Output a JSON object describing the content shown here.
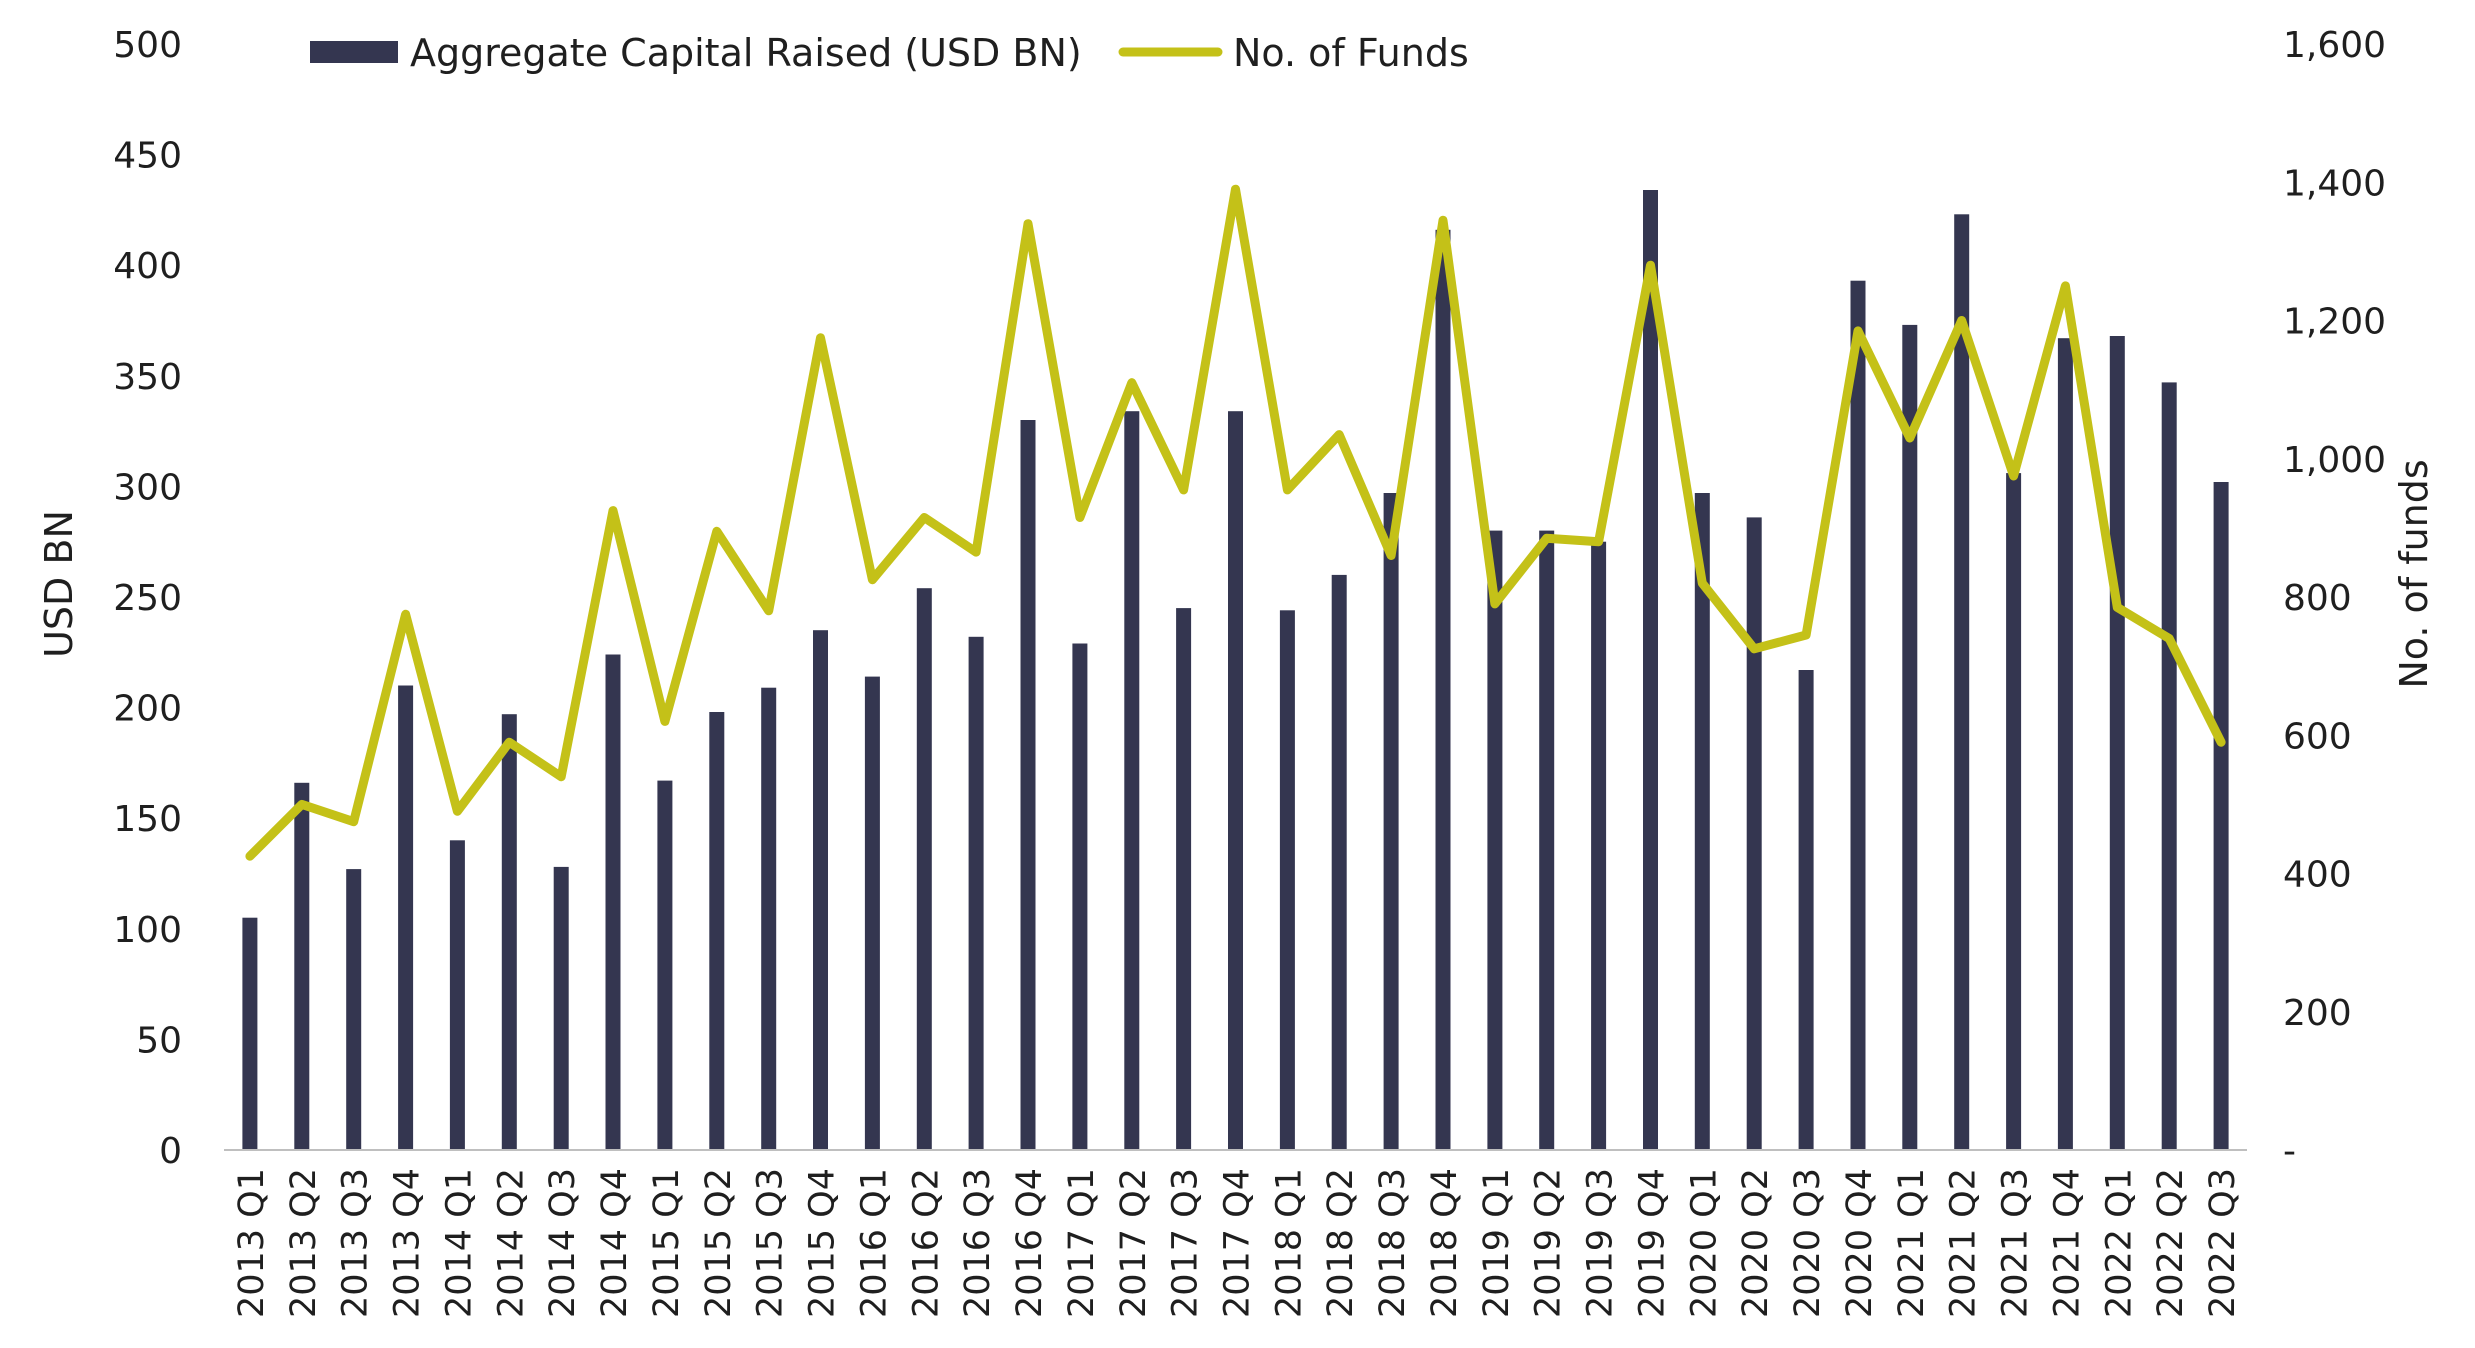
{
  "chart_data": {
    "type": "bar+line",
    "categories": [
      "2013 Q1",
      "2013 Q2",
      "2013 Q3",
      "2013 Q4",
      "2014 Q1",
      "2014 Q2",
      "2014 Q3",
      "2014 Q4",
      "2015 Q1",
      "2015 Q2",
      "2015 Q3",
      "2015 Q4",
      "2016 Q1",
      "2016 Q2",
      "2016 Q3",
      "2016 Q4",
      "2017 Q1",
      "2017 Q2",
      "2017 Q3",
      "2017 Q4",
      "2018 Q1",
      "2018 Q2",
      "2018 Q3",
      "2018 Q4",
      "2019 Q1",
      "2019 Q2",
      "2019 Q3",
      "2019 Q4",
      "2020 Q1",
      "2020 Q2",
      "2020 Q3",
      "2020 Q4",
      "2021 Q1",
      "2021 Q2",
      "2021 Q3",
      "2021 Q4",
      "2022 Q1",
      "2022 Q2",
      "2022 Q3"
    ],
    "series": [
      {
        "name": "Aggregate Capital Raised (USD BN)",
        "type": "bar",
        "axis": "left",
        "color": "#343650",
        "values": [
          105,
          166,
          127,
          210,
          140,
          197,
          128,
          224,
          167,
          198,
          209,
          235,
          214,
          254,
          232,
          330,
          229,
          334,
          245,
          334,
          244,
          260,
          297,
          416,
          280,
          280,
          275,
          434,
          297,
          286,
          217,
          393,
          373,
          423,
          306,
          367,
          368,
          347,
          302
        ]
      },
      {
        "name": "No. of Funds",
        "type": "line",
        "axis": "right",
        "color": "#C4C118",
        "values": [
          425,
          500,
          475,
          775,
          490,
          590,
          540,
          925,
          620,
          895,
          780,
          1175,
          825,
          915,
          865,
          1340,
          915,
          1110,
          955,
          1390,
          955,
          1035,
          860,
          1345,
          790,
          885,
          880,
          1280,
          820,
          725,
          745,
          1185,
          1030,
          1200,
          975,
          1250,
          785,
          740,
          590
        ]
      }
    ],
    "y_left": {
      "label": "USD BN",
      "ylim": [
        0,
        500
      ],
      "ticks": [
        "0",
        "50",
        "100",
        "150",
        "200",
        "250",
        "300",
        "350",
        "400",
        "450",
        "500"
      ]
    },
    "y_right": {
      "label": "No. of funds",
      "ylim": [
        0,
        1600
      ],
      "ticks": [
        "-",
        "200",
        "400",
        "600",
        "800",
        "1,000",
        "1,200",
        "1,400",
        "1,600"
      ]
    },
    "legend_position": "top-left",
    "grid": false
  }
}
